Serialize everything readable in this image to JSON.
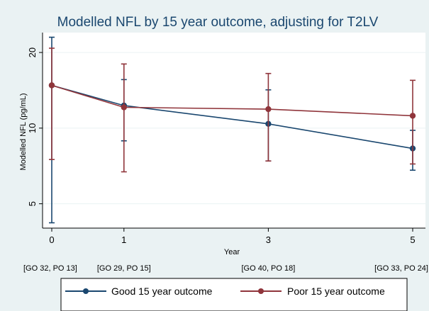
{
  "chart_data": {
    "type": "line",
    "title": "Modelled NFL by 15 year outcome, adjusting for T2LV",
    "xlabel": "Year",
    "ylabel": "Modelled NFL (pg/mL)",
    "y_scale": "log",
    "ylim": [
      4,
      24
    ],
    "xlim": [
      0,
      5
    ],
    "x": [
      0,
      1,
      3,
      5
    ],
    "x_ticks": [
      "0",
      "1",
      "3",
      "5"
    ],
    "y_ticks": [
      5,
      10,
      20
    ],
    "y_tick_labels": [
      "5",
      "10",
      "20"
    ],
    "x_annotations": [
      "[GO 32, PO 13]",
      "[GO 29, PO 15]",
      "[GO 40, PO 18]",
      "[GO 33, PO 24]"
    ],
    "grid": true,
    "legend_position": "bottom",
    "series": [
      {
        "name": "Good 15 year outcome",
        "color": "#1a476f",
        "values": [
          14.8,
          12.3,
          10.4,
          8.3
        ],
        "ci_low": [
          4.2,
          8.9,
          7.4,
          6.8
        ],
        "ci_high": [
          23.0,
          15.6,
          14.2,
          9.8
        ]
      },
      {
        "name": "Poor 15 year outcome",
        "color": "#90353b",
        "values": [
          14.8,
          12.1,
          11.9,
          11.2
        ],
        "ci_low": [
          7.5,
          6.7,
          7.4,
          7.2
        ],
        "ci_high": [
          20.8,
          18.0,
          16.5,
          15.5
        ]
      }
    ]
  }
}
